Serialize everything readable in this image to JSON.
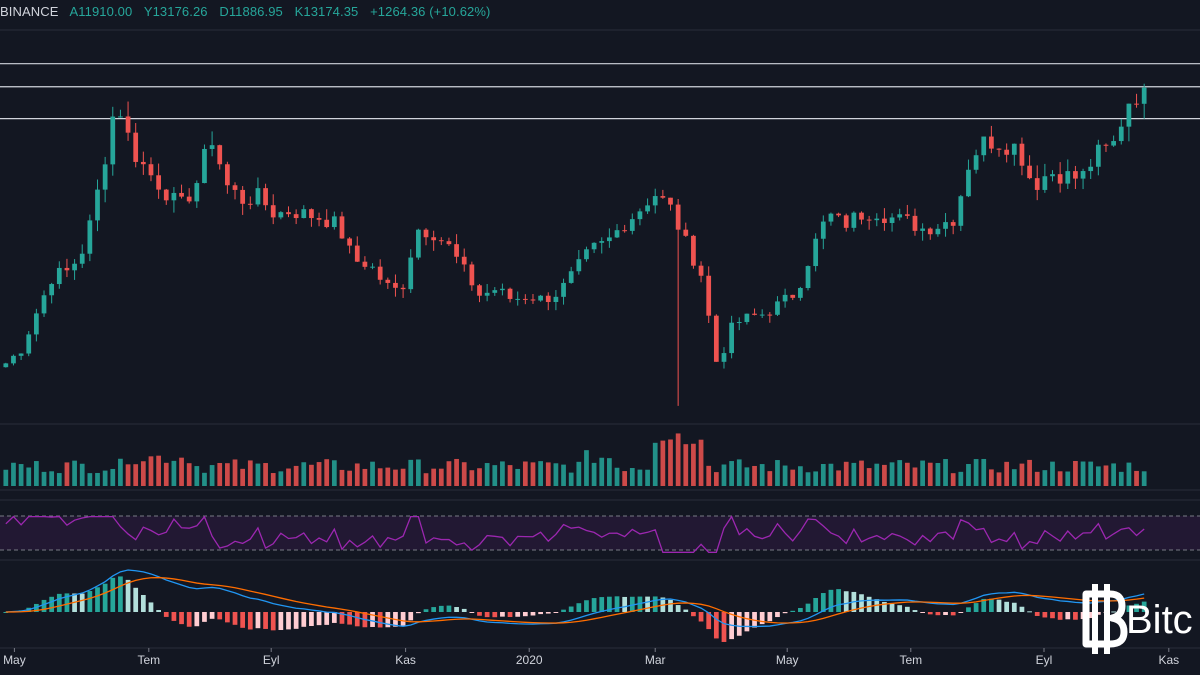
{
  "legend": {
    "exchange": "BINANCE",
    "open": "A11910.00",
    "high": "Y13176.26",
    "low": "D11886.95",
    "close": "K13174.35",
    "change": "+1264.36 (+10.62%)"
  },
  "colors": {
    "background": "#131722",
    "up": "#26a69a",
    "down": "#ef5350",
    "rsi": "#9c27b0",
    "rsi_band": "#2a1a3a",
    "macd": "#2196f3",
    "signal": "#ff6d00",
    "hline": "#d1d4dc",
    "grid": "#2a2e39"
  },
  "watermark": {
    "text": "Bitc",
    "icon": "bitcoin-logo-icon"
  },
  "chart_data": {
    "type": "candlestick",
    "title": "",
    "x_axis_labels": [
      "May",
      "Tem",
      "Eyl",
      "Kas",
      "2020",
      "Mar",
      "May",
      "Tem",
      "Eyl",
      "Kas"
    ],
    "y_range": [
      3800,
      14800
    ],
    "horizontal_levels": [
      13850,
      13200,
      12300
    ],
    "close_series_weekly_approx": [
      5400,
      5800,
      6900,
      7900,
      8000,
      8700,
      10600,
      12900,
      11400,
      10800,
      10300,
      9800,
      10400,
      11800,
      10400,
      10000,
      10100,
      9600,
      9700,
      9600,
      9500,
      9300,
      8300,
      8200,
      7600,
      7400,
      9200,
      9100,
      8700,
      8000,
      7300,
      7500,
      7200,
      7300,
      7200,
      7400,
      8000,
      8600,
      8800,
      9300,
      9700,
      10200,
      9800,
      8800,
      7900,
      5300,
      6500,
      6700,
      6800,
      7100,
      7400,
      8600,
      9600,
      9300,
      9600,
      9700,
      9500,
      9400,
      9200,
      9300,
      9500,
      11200,
      11700,
      11600,
      11500,
      10400,
      10800,
      10700,
      10600,
      11300,
      11500,
      12800,
      13174
    ],
    "volume": true,
    "indicators": [
      "volume",
      "RSI",
      "MACD"
    ]
  }
}
